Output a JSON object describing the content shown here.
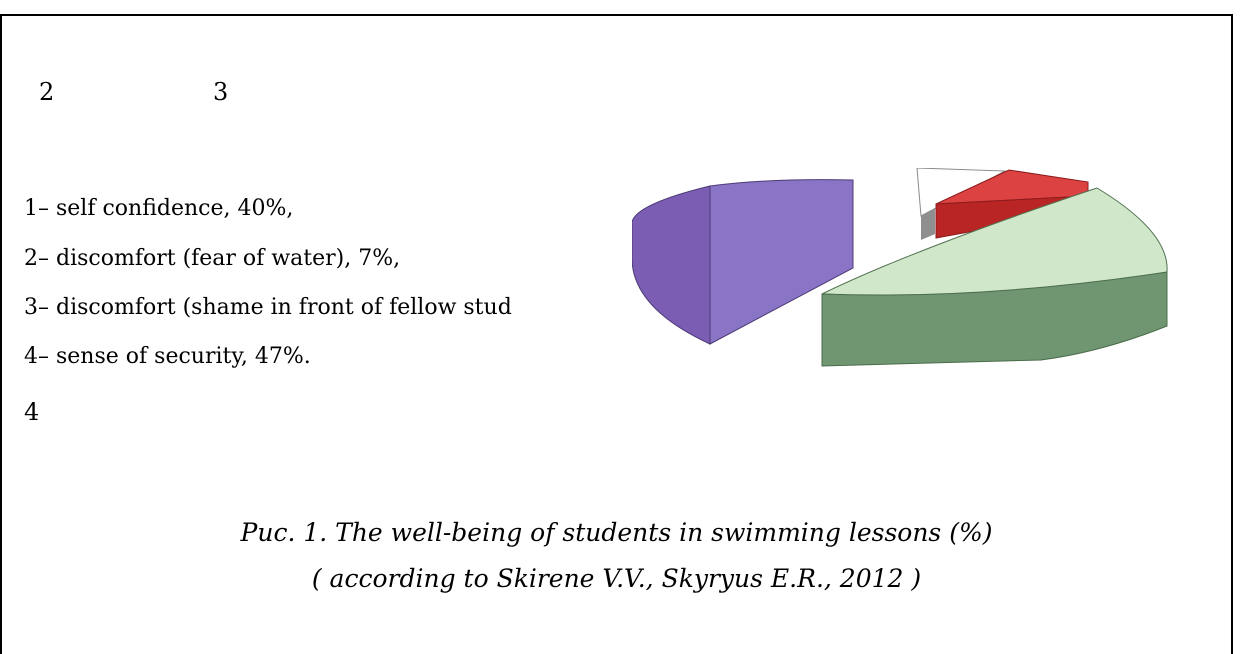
{
  "labels": {
    "n2": "2",
    "n3": "3",
    "n4": "4"
  },
  "legend": [
    "1– self confidence, 40%,",
    "2– discomfort (fear of water),  7%,",
    "3– discomfort  (shame in front of fellow stud",
    "4– sense of security, 47%."
  ],
  "caption": {
    "line1": "Рис. 1. The well-being of students in swimming lessons (%)",
    "line2": "( according to Skirene V.V., Skyryus E.R., 2012 )"
  },
  "chart_data": {
    "type": "pie",
    "style": "3d-exploded",
    "slices": [
      {
        "label": "1",
        "value": 40,
        "top_color": "#ffffff",
        "side_color": "#7a7a7a"
      },
      {
        "label": "2",
        "value": 7,
        "top_color": "#f2f2f2",
        "side_color": "#7f7f7f"
      },
      {
        "label": "3",
        "value": 6,
        "top_color": "#d63a3a",
        "side_color": "#b52121"
      },
      {
        "label": "4",
        "value": 47,
        "top_color": "#cfe7c8",
        "side_color": "#6c9070"
      }
    ],
    "visible_slice_colors": {
      "purple_top": "#8a74c6",
      "purple_side": "#7b5db3"
    }
  }
}
